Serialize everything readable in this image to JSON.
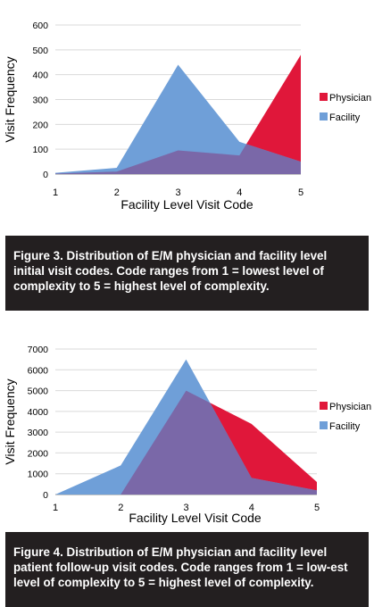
{
  "chart_data": [
    {
      "type": "area",
      "xlabel": "Facility Level Visit Code",
      "ylabel": "Visit Frequency",
      "categories": [
        "1",
        "2",
        "3",
        "4",
        "5"
      ],
      "ylim": [
        0,
        600
      ],
      "yticks": [
        "0",
        "100",
        "200",
        "300",
        "400",
        "500",
        "600"
      ],
      "legend_position": "right",
      "series": [
        {
          "name": "Physician",
          "color": "#e0173a",
          "values": [
            2,
            10,
            95,
            75,
            480
          ]
        },
        {
          "name": "Facility",
          "color": "#6f9fd8",
          "values": [
            5,
            25,
            440,
            130,
            50
          ]
        }
      ],
      "overlap_color": "#7a68a8"
    },
    {
      "type": "area",
      "xlabel": "Facility Level Visit Code",
      "ylabel": "Visit Frequency",
      "categories": [
        "1",
        "2",
        "3",
        "4",
        "5"
      ],
      "ylim": [
        0,
        7000
      ],
      "yticks": [
        "0",
        "1000",
        "2000",
        "3000",
        "4000",
        "5000",
        "6000",
        "7000"
      ],
      "legend_position": "right",
      "series": [
        {
          "name": "Physician",
          "color": "#e0173a",
          "values": [
            0,
            0,
            5000,
            3400,
            600
          ]
        },
        {
          "name": "Facility",
          "color": "#6f9fd8",
          "values": [
            0,
            1400,
            6500,
            800,
            200
          ]
        }
      ],
      "overlap_color": "#7a68a8"
    }
  ],
  "captions": [
    {
      "figure": "Figure 3.",
      "text": " Distribution of E/M physician and facility level initial visit codes. Code ranges from 1 = lowest level of complexity to 5 = highest level of complexity."
    },
    {
      "figure": "Figure 4.",
      "text": " Distribution of E/M physician and facility level patient follow-up visit codes. Code ranges from 1 = low-est level of complexity to 5 = highest level of complexity."
    }
  ]
}
